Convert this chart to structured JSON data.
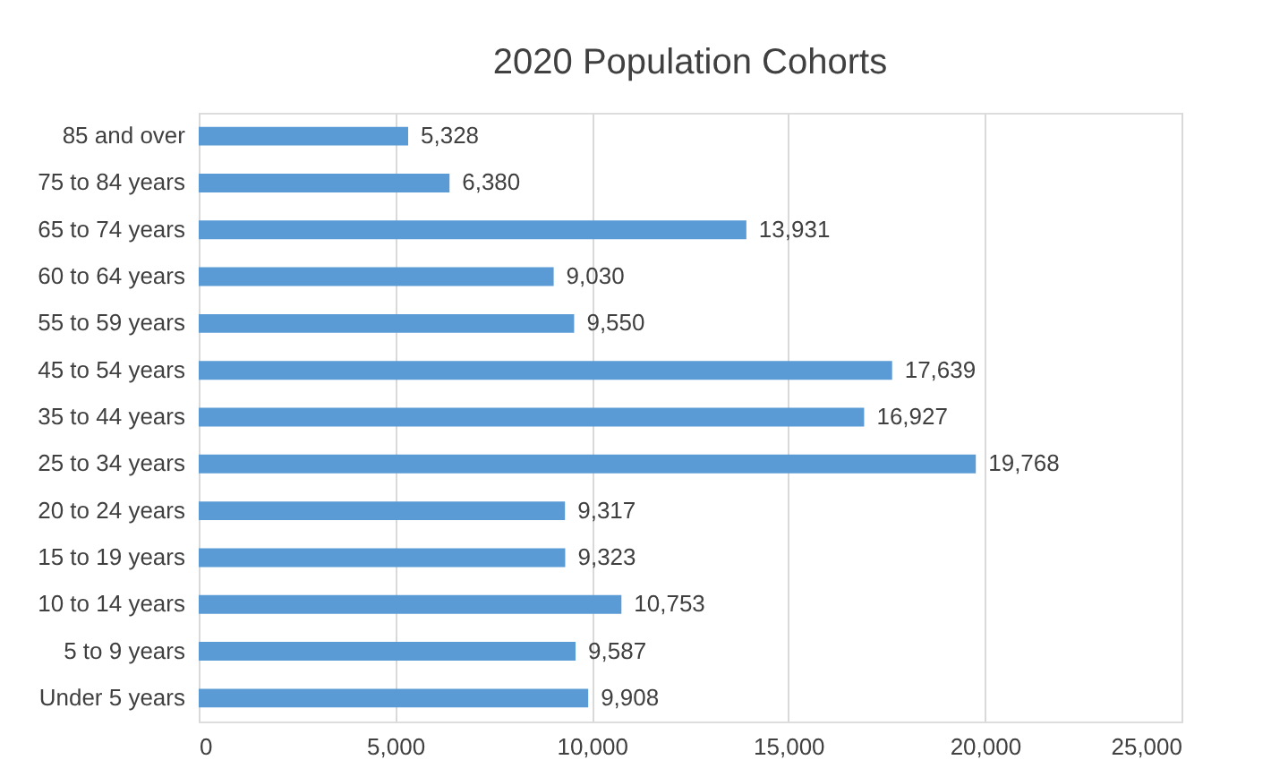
{
  "chart_data": {
    "type": "bar",
    "orientation": "horizontal",
    "title": "2020 Population Cohorts",
    "categories": [
      "85 and over",
      "75 to 84 years",
      "65 to 74 years",
      "60 to 64 years",
      "55 to 59 years",
      "45 to 54 years",
      "35 to 44 years",
      "25 to 34 years",
      "20 to 24 years",
      "15 to 19 years",
      "10 to 14 years",
      "5 to 9 years",
      "Under 5 years"
    ],
    "values": [
      5328,
      6380,
      13931,
      9030,
      9550,
      17639,
      16927,
      19768,
      9317,
      9323,
      10753,
      9587,
      9908
    ],
    "color": "#5b9bd5",
    "value_labels": [
      "5,328",
      "6,380",
      "13,931",
      "9,030",
      "9,550",
      "17,639",
      "16,927",
      "19,768",
      "9,317",
      "9,323",
      "10,753",
      "9,587",
      "9,908"
    ],
    "xlim": [
      0,
      25000
    ],
    "xticks": [
      {
        "value": 0,
        "label": "0"
      },
      {
        "value": 5000,
        "label": "5,000"
      },
      {
        "value": 10000,
        "label": "10,000"
      },
      {
        "value": 15000,
        "label": "15,000"
      },
      {
        "value": 20000,
        "label": "20,000"
      },
      {
        "value": 25000,
        "label": "25,000"
      }
    ],
    "grid": "x"
  }
}
